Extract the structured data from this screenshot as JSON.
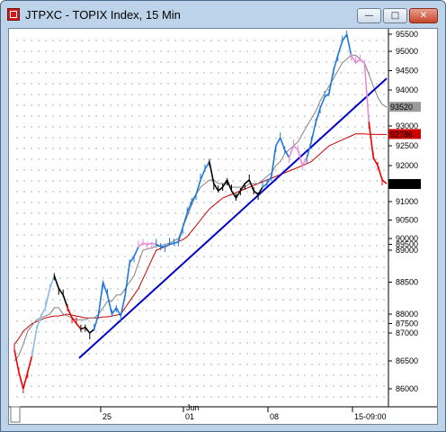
{
  "window": {
    "title": "JTPXC - TOPIX Index, 15 Min",
    "minimize_label": "—",
    "maximize_label": "□",
    "close_label": "✕",
    "icon": "app-icon"
  },
  "colors": {
    "frame": "#bcd3ea",
    "trendline": "#0000cc",
    "ma_long": "#cc0000",
    "ma_short": "#808080",
    "price_blue": "#1e78d8",
    "price_black": "#000000",
    "price_red": "#ee0000",
    "price_pink": "#e88ad8",
    "price_lightblue": "#8cbce8",
    "last_price_tag": "#000000",
    "ma_long_tag": "#cc0000",
    "ma_short_tag": "#9a9a9a"
  },
  "chart_data": {
    "type": "line",
    "title": "",
    "xlabel": "",
    "ylabel": "",
    "ylim": [
      8550,
      95600
    ],
    "y_ticks": [
      "95500",
      "95000",
      "94500",
      "94000",
      "93000",
      "92500",
      "92000",
      "91000",
      "90500",
      "90000",
      "89500",
      "89000",
      "88500",
      "88000",
      "87500",
      "87000",
      "86500",
      "86000"
    ],
    "x_ticks": [
      "25",
      "01",
      "08",
      "15-09:00"
    ],
    "x_top_label": "Jun",
    "price_tags": [
      {
        "label": "93520",
        "series": "ma_short"
      },
      {
        "label": "92786",
        "series": "ma_long"
      },
      {
        "label": "91476",
        "series": "last_price"
      }
    ],
    "series": [
      {
        "key": "price",
        "values": [
          86700,
          86300,
          86000,
          86300,
          86600,
          87200,
          87900,
          88100,
          88400,
          88600,
          88400,
          88300,
          88100,
          87800,
          87500,
          87200,
          87300,
          87000,
          87200,
          88000,
          88500,
          88300,
          88000,
          88100,
          87900,
          88300,
          88800,
          88900,
          89300,
          89600,
          89500,
          89600,
          89500,
          89300,
          89300,
          89500,
          89600,
          89700,
          90300,
          90700,
          91000,
          91200,
          91600,
          91900,
          92100,
          91500,
          91300,
          91400,
          91600,
          91300,
          91100,
          91300,
          91500,
          91600,
          91300,
          91200,
          91400,
          91500,
          91700,
          92500,
          92700,
          92400,
          92200,
          92500,
          92400,
          92000,
          92200,
          92600,
          93100,
          93500,
          93800,
          93900,
          94500,
          94900,
          95300,
          95500,
          94900,
          94700,
          94800,
          94700,
          93100,
          92200,
          92000,
          91600,
          91500
        ]
      },
      {
        "key": "ma_short",
        "values": [
          86500,
          86600,
          86800,
          87100,
          87400,
          87700,
          87800,
          87900,
          88000,
          88100,
          88100,
          88000,
          87900,
          87800,
          87700,
          87700,
          87700,
          87800,
          87800,
          88000,
          88100,
          88200,
          88200,
          88300,
          88300,
          88400,
          88500,
          88600,
          88800,
          89000,
          89100,
          89200,
          89300,
          89400,
          89500,
          89600,
          89800,
          90000,
          90300,
          90600,
          90900,
          91200,
          91400,
          91500,
          91600,
          91600,
          91500,
          91500,
          91500,
          91400,
          91400,
          91400,
          91400,
          91500,
          91500,
          91500,
          91600,
          91700,
          91800,
          92000,
          92100,
          92300,
          92400,
          92500,
          92600,
          92800,
          93000,
          93200,
          93400,
          93700,
          93900,
          94100,
          94300,
          94500,
          94700,
          94800,
          94900,
          94900,
          94800,
          94700,
          94400,
          94100,
          93800,
          93600,
          93520
        ]
      },
      {
        "key": "ma_long",
        "values": [
          86800,
          86900,
          87100,
          87300,
          87500,
          87600,
          87700,
          87800,
          87850,
          87900,
          87900,
          87950,
          88000,
          87950,
          87900,
          87850,
          87800,
          87800,
          87800,
          87800,
          87850,
          87850,
          87900,
          87950,
          88000,
          88100,
          88200,
          88300,
          88400,
          88550,
          88700,
          88850,
          89000,
          89150,
          89300,
          89450,
          89600,
          89750,
          89900,
          90050,
          90200,
          90350,
          90500,
          90650,
          90800,
          90900,
          91000,
          91100,
          91150,
          91200,
          91250,
          91300,
          91350,
          91400,
          91450,
          91500,
          91550,
          91600,
          91650,
          91700,
          91750,
          91800,
          91850,
          91900,
          91950,
          92000,
          92050,
          92100,
          92200,
          92300,
          92400,
          92500,
          92550,
          92600,
          92650,
          92700,
          92750,
          92800,
          92800,
          92800,
          92790,
          92790,
          92786,
          92786,
          92786
        ]
      },
      {
        "key": "trendline",
        "values": [
          86550,
          94300
        ]
      }
    ]
  }
}
